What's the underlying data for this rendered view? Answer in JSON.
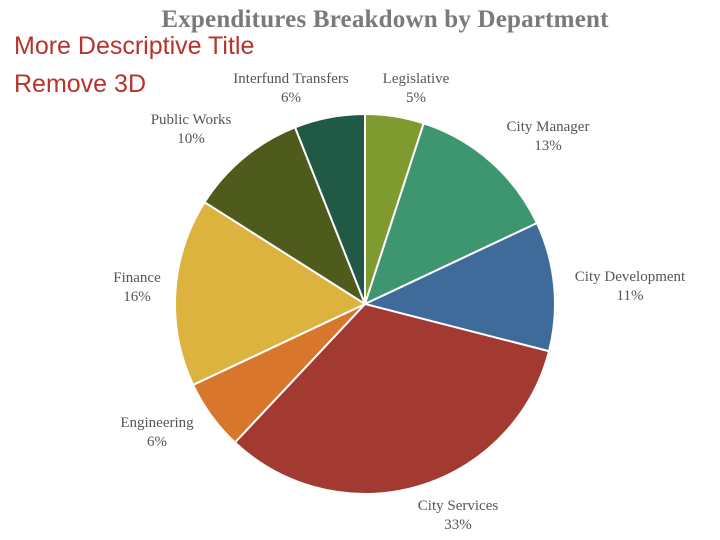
{
  "notes": {
    "line1": "More Descriptive Title",
    "line2": "Remove 3D"
  },
  "chart_data": {
    "type": "pie",
    "title": "Expenditures Breakdown by Department",
    "legend": "none",
    "data_labels": "category and percentage outside slices",
    "start_angle_deg": 0,
    "direction": "clockwise",
    "slices": [
      {
        "label": "Legislative",
        "value": 5,
        "value_text": "5%",
        "color": "#7F9A2E"
      },
      {
        "label": "City Manager",
        "value": 13,
        "value_text": "13%",
        "color": "#3E9670"
      },
      {
        "label": "City Development",
        "value": 11,
        "value_text": "11%",
        "color": "#3F6B9A"
      },
      {
        "label": "City Services",
        "value": 33,
        "value_text": "33%",
        "color": "#A33A32"
      },
      {
        "label": "Engineering",
        "value": 6,
        "value_text": "6%",
        "color": "#D8772B"
      },
      {
        "label": "Finance",
        "value": 16,
        "value_text": "16%",
        "color": "#DDB340"
      },
      {
        "label": "Public Works",
        "value": 10,
        "value_text": "10%",
        "color": "#4F5B1C"
      },
      {
        "label": "Interfund Transfers",
        "value": 6,
        "value_text": "6%",
        "color": "#205A47"
      }
    ]
  }
}
